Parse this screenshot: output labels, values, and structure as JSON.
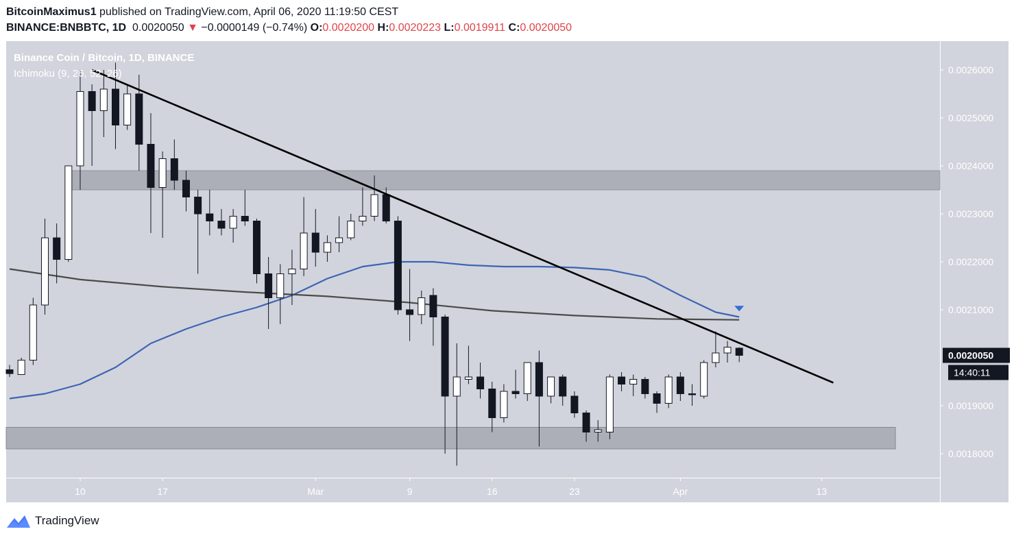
{
  "header": {
    "author": "BitcoinMaximus1",
    "published_on": "published on TradingView.com, April 06, 2020 11:19:50 CEST",
    "symbol": "BINANCE:BNBBTC, 1D",
    "last": "0.0020050",
    "arrow": "▼",
    "change": "−0.0000149 (−0.74%)",
    "o_label": "O:",
    "o_value": "0.0020200",
    "h_label": "H:",
    "h_value": "0.0020223",
    "l_label": "L:",
    "l_value": "0.0019911",
    "c_label": "C:",
    "c_value": "0.0020050"
  },
  "legend": {
    "title": "Binance Coin / Bitcoin, 1D, BINANCE",
    "indicator": "Ichimoku (9, 26, 52, 26)"
  },
  "brand": {
    "name": "TradingView"
  },
  "colors": {
    "plot_bg": "#d1d4dc",
    "bull_body": "#ffffff",
    "bear_body": "#131722",
    "zone": "#a9abb3",
    "trendline": "#000000",
    "blue_ma": "#3e63b5",
    "dark_ma": "#4b4b4b",
    "down_red": "#e0434b"
  },
  "chart_data": {
    "type": "candlestick",
    "title": "Binance Coin / Bitcoin, 1D, BINANCE",
    "ylim": [
      0.00175,
      0.00266
    ],
    "y_ticks": [
      "0.0026000",
      "0.0025000",
      "0.0024000",
      "0.0023000",
      "0.0022000",
      "0.0021000",
      "0.0019000",
      "0.0018000"
    ],
    "y_tick_values": [
      0.0026,
      0.0025,
      0.0024,
      0.0023,
      0.0022,
      0.0021,
      0.0019,
      0.0018
    ],
    "x_ticks": [
      {
        "label": "10",
        "date": "2020-02-10"
      },
      {
        "label": "17",
        "date": "2020-02-17"
      },
      {
        "label": "Mar",
        "date": "2020-03-01"
      },
      {
        "label": "9",
        "date": "2020-03-09"
      },
      {
        "label": "16",
        "date": "2020-03-16"
      },
      {
        "label": "23",
        "date": "2020-03-23"
      },
      {
        "label": "Apr",
        "date": "2020-04-01"
      },
      {
        "label": "13",
        "date": "2020-04-13"
      }
    ],
    "x_range": [
      "2020-02-04",
      "2020-04-17"
    ],
    "current_price_label": "0.0020050",
    "countdown_label": "14:40:11",
    "current_price": 0.002005,
    "candles": [
      {
        "date": "2020-02-04",
        "o": 0.001975,
        "h": 0.001985,
        "l": 0.00196,
        "c": 0.001967
      },
      {
        "date": "2020-02-05",
        "o": 0.001965,
        "h": 0.002,
        "l": 0.001965,
        "c": 0.001995
      },
      {
        "date": "2020-02-06",
        "o": 0.001995,
        "h": 0.002125,
        "l": 0.001985,
        "c": 0.00211
      },
      {
        "date": "2020-02-07",
        "o": 0.00211,
        "h": 0.00229,
        "l": 0.00209,
        "c": 0.00225
      },
      {
        "date": "2020-02-08",
        "o": 0.00225,
        "h": 0.00228,
        "l": 0.002155,
        "c": 0.002205
      },
      {
        "date": "2020-02-09",
        "o": 0.002205,
        "h": 0.0024,
        "l": 0.0022,
        "c": 0.0024
      },
      {
        "date": "2020-02-10",
        "o": 0.0024,
        "h": 0.0026,
        "l": 0.00235,
        "c": 0.002555
      },
      {
        "date": "2020-02-11",
        "o": 0.002555,
        "h": 0.00257,
        "l": 0.0024,
        "c": 0.002515
      },
      {
        "date": "2020-02-12",
        "o": 0.002515,
        "h": 0.0026,
        "l": 0.00246,
        "c": 0.00256
      },
      {
        "date": "2020-02-13",
        "o": 0.00256,
        "h": 0.002615,
        "l": 0.002435,
        "c": 0.002485
      },
      {
        "date": "2020-02-14",
        "o": 0.002485,
        "h": 0.00257,
        "l": 0.002475,
        "c": 0.00255
      },
      {
        "date": "2020-02-15",
        "o": 0.00255,
        "h": 0.00259,
        "l": 0.00239,
        "c": 0.002445
      },
      {
        "date": "2020-02-16",
        "o": 0.002445,
        "h": 0.00251,
        "l": 0.00226,
        "c": 0.002355
      },
      {
        "date": "2020-02-17",
        "o": 0.002355,
        "h": 0.00243,
        "l": 0.00225,
        "c": 0.002415
      },
      {
        "date": "2020-02-18",
        "o": 0.002415,
        "h": 0.002455,
        "l": 0.00235,
        "c": 0.00237
      },
      {
        "date": "2020-02-19",
        "o": 0.00237,
        "h": 0.00239,
        "l": 0.002305,
        "c": 0.002335
      },
      {
        "date": "2020-02-20",
        "o": 0.002335,
        "h": 0.00235,
        "l": 0.002175,
        "c": 0.0023
      },
      {
        "date": "2020-02-21",
        "o": 0.0023,
        "h": 0.00235,
        "l": 0.002255,
        "c": 0.002285
      },
      {
        "date": "2020-02-22",
        "o": 0.002285,
        "h": 0.00231,
        "l": 0.002255,
        "c": 0.00227
      },
      {
        "date": "2020-02-23",
        "o": 0.00227,
        "h": 0.00231,
        "l": 0.00224,
        "c": 0.002295
      },
      {
        "date": "2020-02-24",
        "o": 0.002295,
        "h": 0.00235,
        "l": 0.002275,
        "c": 0.002285
      },
      {
        "date": "2020-02-25",
        "o": 0.002285,
        "h": 0.00229,
        "l": 0.002155,
        "c": 0.002175
      },
      {
        "date": "2020-02-26",
        "o": 0.002175,
        "h": 0.00221,
        "l": 0.00206,
        "c": 0.002125
      },
      {
        "date": "2020-02-27",
        "o": 0.002125,
        "h": 0.002195,
        "l": 0.00207,
        "c": 0.002175
      },
      {
        "date": "2020-02-28",
        "o": 0.002175,
        "h": 0.002225,
        "l": 0.00211,
        "c": 0.002185
      },
      {
        "date": "2020-02-29",
        "o": 0.002185,
        "h": 0.002335,
        "l": 0.00217,
        "c": 0.00226
      },
      {
        "date": "2020-03-01",
        "o": 0.00226,
        "h": 0.00231,
        "l": 0.00219,
        "c": 0.00222
      },
      {
        "date": "2020-03-02",
        "o": 0.00222,
        "h": 0.002255,
        "l": 0.0022,
        "c": 0.00224
      },
      {
        "date": "2020-03-03",
        "o": 0.00224,
        "h": 0.002295,
        "l": 0.00222,
        "c": 0.00225
      },
      {
        "date": "2020-03-04",
        "o": 0.00225,
        "h": 0.0023,
        "l": 0.002245,
        "c": 0.002285
      },
      {
        "date": "2020-03-05",
        "o": 0.002285,
        "h": 0.002355,
        "l": 0.002275,
        "c": 0.002295
      },
      {
        "date": "2020-03-06",
        "o": 0.002295,
        "h": 0.00238,
        "l": 0.002285,
        "c": 0.00234
      },
      {
        "date": "2020-03-07",
        "o": 0.00234,
        "h": 0.002355,
        "l": 0.00228,
        "c": 0.002285
      },
      {
        "date": "2020-03-08",
        "o": 0.002285,
        "h": 0.002295,
        "l": 0.00209,
        "c": 0.0021
      },
      {
        "date": "2020-03-09",
        "o": 0.0021,
        "h": 0.002185,
        "l": 0.002035,
        "c": 0.00209
      },
      {
        "date": "2020-03-10",
        "o": 0.00209,
        "h": 0.00214,
        "l": 0.00207,
        "c": 0.002125
      },
      {
        "date": "2020-03-11",
        "o": 0.00213,
        "h": 0.002145,
        "l": 0.002025,
        "c": 0.002085
      },
      {
        "date": "2020-03-12",
        "o": 0.002085,
        "h": 0.00209,
        "l": 0.0018,
        "c": 0.00192
      },
      {
        "date": "2020-03-13",
        "o": 0.00192,
        "h": 0.00203,
        "l": 0.001775,
        "c": 0.00196
      },
      {
        "date": "2020-03-14",
        "o": 0.001955,
        "h": 0.002025,
        "l": 0.001945,
        "c": 0.00196
      },
      {
        "date": "2020-03-15",
        "o": 0.00196,
        "h": 0.00199,
        "l": 0.001915,
        "c": 0.001935
      },
      {
        "date": "2020-03-16",
        "o": 0.001935,
        "h": 0.00195,
        "l": 0.001845,
        "c": 0.001875
      },
      {
        "date": "2020-03-17",
        "o": 0.001875,
        "h": 0.001945,
        "l": 0.001865,
        "c": 0.00193
      },
      {
        "date": "2020-03-18",
        "o": 0.00193,
        "h": 0.001975,
        "l": 0.001915,
        "c": 0.001925
      },
      {
        "date": "2020-03-19",
        "o": 0.001925,
        "h": 0.00199,
        "l": 0.00191,
        "c": 0.00199
      },
      {
        "date": "2020-03-20",
        "o": 0.00199,
        "h": 0.002015,
        "l": 0.001815,
        "c": 0.00192
      },
      {
        "date": "2020-03-21",
        "o": 0.00192,
        "h": 0.00196,
        "l": 0.001905,
        "c": 0.00196
      },
      {
        "date": "2020-03-22",
        "o": 0.00196,
        "h": 0.001965,
        "l": 0.0019,
        "c": 0.00192
      },
      {
        "date": "2020-03-23",
        "o": 0.00192,
        "h": 0.00193,
        "l": 0.001875,
        "c": 0.001885
      },
      {
        "date": "2020-03-24",
        "o": 0.001885,
        "h": 0.00189,
        "l": 0.001825,
        "c": 0.001845
      },
      {
        "date": "2020-03-25",
        "o": 0.001845,
        "h": 0.00187,
        "l": 0.001825,
        "c": 0.00185
      },
      {
        "date": "2020-03-26",
        "o": 0.001845,
        "h": 0.001965,
        "l": 0.00183,
        "c": 0.00196
      },
      {
        "date": "2020-03-27",
        "o": 0.00196,
        "h": 0.00197,
        "l": 0.00193,
        "c": 0.001945
      },
      {
        "date": "2020-03-28",
        "o": 0.001945,
        "h": 0.001965,
        "l": 0.00192,
        "c": 0.001955
      },
      {
        "date": "2020-03-29",
        "o": 0.001955,
        "h": 0.00196,
        "l": 0.001915,
        "c": 0.001925
      },
      {
        "date": "2020-03-30",
        "o": 0.001925,
        "h": 0.00193,
        "l": 0.001885,
        "c": 0.001905
      },
      {
        "date": "2020-03-31",
        "o": 0.001905,
        "h": 0.001965,
        "l": 0.001895,
        "c": 0.00196
      },
      {
        "date": "2020-04-01",
        "o": 0.00196,
        "h": 0.00197,
        "l": 0.00191,
        "c": 0.001925
      },
      {
        "date": "2020-04-02",
        "o": 0.001925,
        "h": 0.001945,
        "l": 0.0019,
        "c": 0.001923
      },
      {
        "date": "2020-04-03",
        "o": 0.00192,
        "h": 0.001995,
        "l": 0.001915,
        "c": 0.00199
      },
      {
        "date": "2020-04-04",
        "o": 0.00199,
        "h": 0.002055,
        "l": 0.00198,
        "c": 0.00201
      },
      {
        "date": "2020-04-05",
        "o": 0.00201,
        "h": 0.002035,
        "l": 0.00199,
        "c": 0.002022
      },
      {
        "date": "2020-04-06",
        "o": 0.00202,
        "h": 0.002022,
        "l": 0.001991,
        "c": 0.002005
      }
    ],
    "resistance_zone": [
      0.00235,
      0.00239
    ],
    "support_zone": [
      0.00181,
      0.001855
    ],
    "trendline": [
      {
        "date": "2020-02-11",
        "price": 0.0026
      },
      {
        "date": "2020-04-14",
        "price": 0.001948
      }
    ],
    "series": [
      {
        "style": "blue",
        "points": [
          [
            "2020-02-04",
            0.001915
          ],
          [
            "2020-02-07",
            0.001925
          ],
          [
            "2020-02-10",
            0.001945
          ],
          [
            "2020-02-13",
            0.00198
          ],
          [
            "2020-02-16",
            0.00203
          ],
          [
            "2020-02-19",
            0.00206
          ],
          [
            "2020-02-22",
            0.002085
          ],
          [
            "2020-02-25",
            0.002105
          ],
          [
            "2020-02-28",
            0.00213
          ],
          [
            "2020-03-02",
            0.002165
          ],
          [
            "2020-03-05",
            0.00219
          ],
          [
            "2020-03-08",
            0.0022
          ],
          [
            "2020-03-11",
            0.0022
          ],
          [
            "2020-03-14",
            0.002193
          ],
          [
            "2020-03-17",
            0.00219
          ],
          [
            "2020-03-20",
            0.00219
          ],
          [
            "2020-03-23",
            0.002188
          ],
          [
            "2020-03-26",
            0.002183
          ],
          [
            "2020-03-29",
            0.002168
          ],
          [
            "2020-04-01",
            0.00213
          ],
          [
            "2020-04-04",
            0.002095
          ],
          [
            "2020-04-06",
            0.002085
          ]
        ]
      },
      {
        "style": "dark",
        "points": [
          [
            "2020-02-04",
            0.002185
          ],
          [
            "2020-02-10",
            0.002163
          ],
          [
            "2020-02-17",
            0.002148
          ],
          [
            "2020-02-24",
            0.002137
          ],
          [
            "2020-03-02",
            0.002128
          ],
          [
            "2020-03-09",
            0.002115
          ],
          [
            "2020-03-16",
            0.002098
          ],
          [
            "2020-03-23",
            0.002088
          ],
          [
            "2020-03-30",
            0.002081
          ],
          [
            "2020-04-06",
            0.002079
          ]
        ]
      }
    ],
    "marker": {
      "date": "2020-04-06",
      "price": 0.002101,
      "shape": "triangle-down"
    }
  }
}
